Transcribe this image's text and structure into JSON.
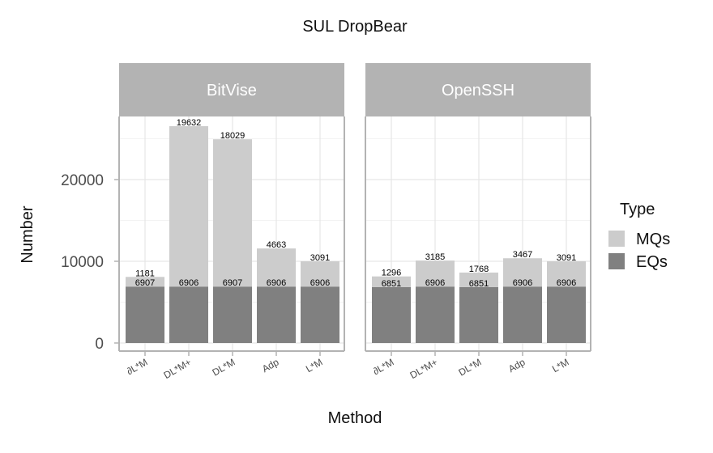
{
  "chart_data": {
    "type": "bar",
    "stacked": true,
    "title": "SUL  DropBear",
    "xlabel": "Method",
    "ylabel": "Number",
    "ylim": [
      0,
      28000
    ],
    "yticks": [
      0,
      10000,
      20000
    ],
    "grid": true,
    "legend": {
      "title": "Type",
      "placement": "right",
      "entries": [
        {
          "name": "MQs",
          "color": "#cccccc"
        },
        {
          "name": "EQs",
          "color": "#808080"
        }
      ]
    },
    "categories": [
      "∂L*M",
      "DL*M+",
      "DL*M",
      "Adp",
      "L*M"
    ],
    "panels": [
      {
        "name": "BitVise",
        "series": [
          {
            "name": "EQs",
            "values": [
              6907,
              6906,
              6907,
              6906,
              6906
            ]
          },
          {
            "name": "MQs",
            "values": [
              1181,
              19632,
              18029,
              4663,
              3091
            ]
          }
        ]
      },
      {
        "name": "OpenSSH",
        "series": [
          {
            "name": "EQs",
            "values": [
              6851,
              6906,
              6851,
              6906,
              6906
            ]
          },
          {
            "name": "MQs",
            "values": [
              1296,
              3185,
              1768,
              3467,
              3091
            ]
          }
        ]
      }
    ],
    "colors": {
      "strip": "#b3b3b3",
      "grid": "#e6e6e6",
      "panel_border": "#b3b3b3"
    }
  }
}
